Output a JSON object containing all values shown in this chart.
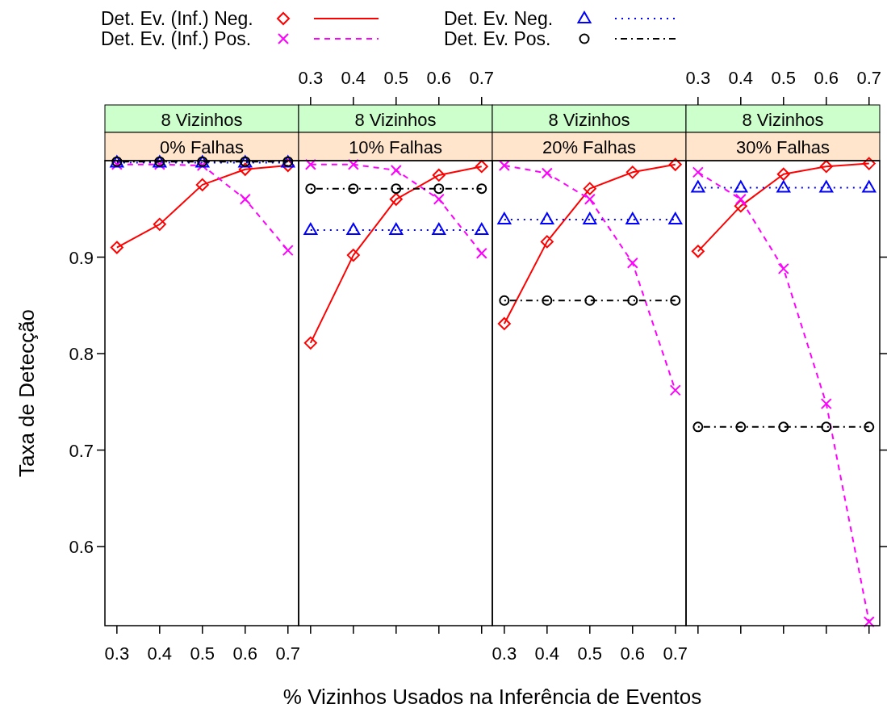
{
  "chart_data": [
    {
      "type": "line",
      "title": "8 Vizinhos",
      "subtitle": "0% Falhas",
      "xlabel": "% Vizinhos Usados na Inferência de Eventos",
      "ylabel": "Taxa de Detecção",
      "legend": "top",
      "grid": false,
      "x": [
        0.3,
        0.4,
        0.5,
        0.6,
        0.7
      ],
      "xlim": [
        0.272,
        0.725
      ],
      "xticks": [
        0.3,
        0.4,
        0.5,
        0.6,
        0.7
      ],
      "ylim": [
        0.518,
        1.0
      ],
      "yticks": [
        0.6,
        0.7,
        0.8,
        0.9
      ],
      "series": [
        {
          "name": "Det. Ev. (Inf.) Neg.",
          "color": "#ff0000",
          "marker": "diamond",
          "line_style": "solid",
          "values": [
            0.91,
            0.934,
            0.975,
            0.991,
            0.995
          ]
        },
        {
          "name": "Det. Ev. (Inf.) Pos.",
          "color": "#ff00ff",
          "marker": "cross",
          "line_style": "dashed",
          "values": [
            0.996,
            0.996,
            0.995,
            0.96,
            0.907
          ]
        },
        {
          "name": "Det. Ev. Neg.",
          "color": "#0000ff",
          "marker": "triangle",
          "line_style": "dotted",
          "values": [
            0.998,
            0.998,
            0.998,
            0.998,
            0.998
          ]
        },
        {
          "name": "Det. Ev. Pos.",
          "color": "#000000",
          "marker": "circle",
          "line_style": "dashdot",
          "values": [
            0.999,
            0.999,
            0.999,
            0.999,
            0.999
          ]
        }
      ]
    },
    {
      "type": "line",
      "title": "8 Vizinhos",
      "subtitle": "10% Falhas",
      "tick_labels": "x",
      "x": [
        0.3,
        0.4,
        0.5,
        0.6,
        0.7
      ],
      "xlim": [
        0.272,
        0.725
      ],
      "xticks": [
        0.3,
        0.4,
        0.5,
        0.6,
        0.7
      ],
      "ylim": [
        0.518,
        1.0
      ],
      "series": [
        {
          "color": "#ff0000",
          "marker": "diamond",
          "line_style": "solid",
          "values": [
            0.811,
            0.902,
            0.96,
            0.985,
            0.994
          ]
        },
        {
          "color": "#ff00ff",
          "marker": "cross",
          "line_style": "dashed",
          "values": [
            0.996,
            0.996,
            0.99,
            0.96,
            0.904
          ]
        },
        {
          "color": "#0000ff",
          "marker": "triangle",
          "line_style": "dotted",
          "values": [
            0.928,
            0.928,
            0.928,
            0.928,
            0.928
          ]
        },
        {
          "color": "#000000",
          "marker": "circle",
          "line_style": "dashdot",
          "values": [
            0.971,
            0.971,
            0.971,
            0.971,
            0.971
          ]
        }
      ]
    },
    {
      "type": "line",
      "title": "8 Vizinhos",
      "subtitle": "20% Falhas",
      "tick_labels": "x",
      "x": [
        0.3,
        0.4,
        0.5,
        0.6,
        0.7
      ],
      "xlim": [
        0.272,
        0.725
      ],
      "xticks": [
        0.3,
        0.4,
        0.5,
        0.6,
        0.7
      ],
      "ylim": [
        0.518,
        1.0
      ],
      "series": [
        {
          "color": "#ff0000",
          "marker": "diamond",
          "line_style": "solid",
          "values": [
            0.831,
            0.916,
            0.971,
            0.988,
            0.996
          ]
        },
        {
          "color": "#ff00ff",
          "marker": "cross",
          "line_style": "dashed",
          "values": [
            0.995,
            0.987,
            0.96,
            0.894,
            0.762
          ]
        },
        {
          "color": "#0000ff",
          "marker": "triangle",
          "line_style": "dotted",
          "values": [
            0.939,
            0.939,
            0.939,
            0.939,
            0.939
          ]
        },
        {
          "color": "#000000",
          "marker": "circle",
          "line_style": "dashdot",
          "values": [
            0.855,
            0.855,
            0.855,
            0.855,
            0.855
          ]
        }
      ]
    },
    {
      "type": "line",
      "title": "8 Vizinhos",
      "subtitle": "30% Falhas",
      "tick_labels": "x",
      "x": [
        0.3,
        0.4,
        0.5,
        0.6,
        0.7
      ],
      "xlim": [
        0.272,
        0.725
      ],
      "xticks": [
        0.3,
        0.4,
        0.5,
        0.6,
        0.7
      ],
      "ylim": [
        0.518,
        1.0
      ],
      "yticks": [
        0.6,
        0.7,
        0.8,
        0.9
      ],
      "series": [
        {
          "color": "#ff0000",
          "marker": "diamond",
          "line_style": "solid",
          "values": [
            0.906,
            0.953,
            0.986,
            0.994,
            0.997
          ]
        },
        {
          "color": "#ff00ff",
          "marker": "cross",
          "line_style": "dashed",
          "values": [
            0.988,
            0.96,
            0.888,
            0.748,
            0.522
          ]
        },
        {
          "color": "#0000ff",
          "marker": "triangle",
          "line_style": "dotted",
          "values": [
            0.972,
            0.972,
            0.972,
            0.972,
            0.972
          ]
        },
        {
          "color": "#000000",
          "marker": "circle",
          "line_style": "dashdot",
          "values": [
            0.724,
            0.724,
            0.724,
            0.724,
            0.724
          ]
        }
      ]
    }
  ]
}
